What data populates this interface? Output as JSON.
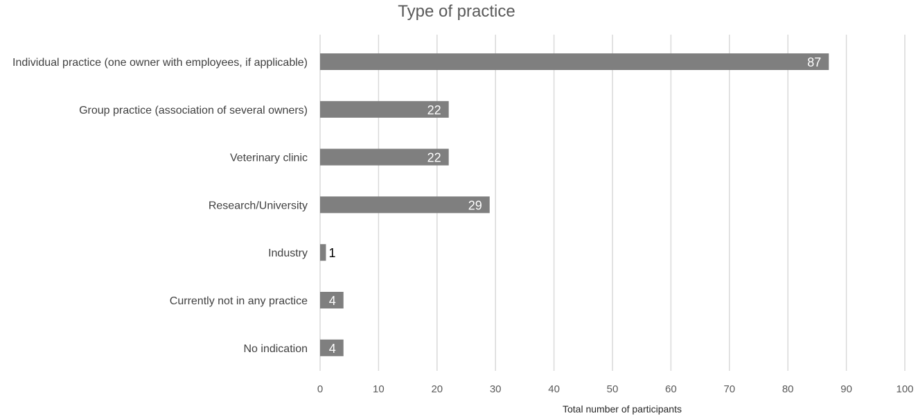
{
  "chart_data": {
    "type": "bar",
    "orientation": "horizontal",
    "title": "Type of practice",
    "xlabel": "Total number of participants",
    "ylabel": "",
    "categories": [
      "Individual practice (one owner with employees, if applicable)",
      "Group practice (association of several owners)",
      "Veterinary clinic",
      "Research/University",
      "Industry",
      "Currently not in any practice",
      "No indication"
    ],
    "values": [
      87,
      22,
      22,
      29,
      1,
      4,
      4
    ],
    "xlim": [
      0,
      100
    ],
    "xticks": [
      0,
      10,
      20,
      30,
      40,
      50,
      60,
      70,
      80,
      90,
      100
    ],
    "grid": "vertical",
    "legend": "none",
    "data_labels": true,
    "colors": {
      "bar": "#7f7f7f",
      "grid": "#d9d9d9",
      "label_inside": "#ffffff",
      "label_outside": "#000000"
    }
  }
}
